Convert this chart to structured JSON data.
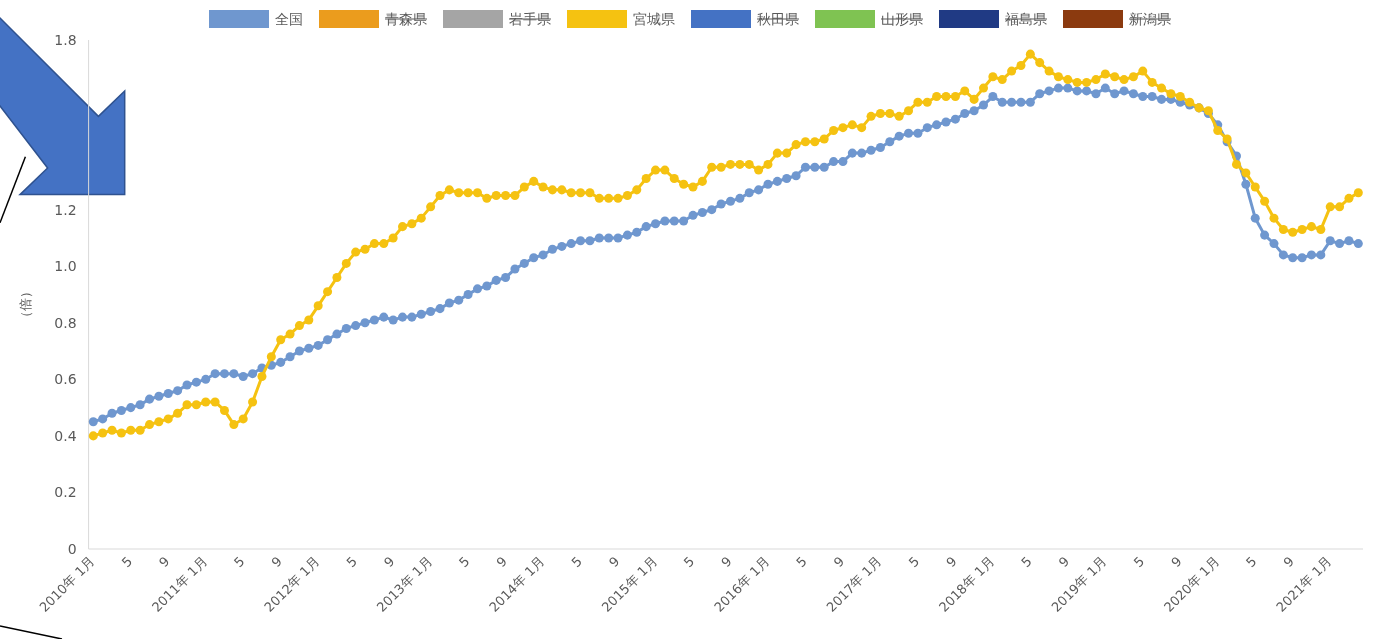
{
  "chart_data": {
    "type": "line",
    "ylabel": "（倍）",
    "categories": [
      "2010年 1月",
      null,
      null,
      null,
      "5",
      null,
      null,
      null,
      "9",
      null,
      null,
      null,
      "2011年 1月",
      null,
      null,
      null,
      "5",
      null,
      null,
      null,
      "9",
      null,
      null,
      null,
      "2012年 1月",
      null,
      null,
      null,
      "5",
      null,
      null,
      null,
      "9",
      null,
      null,
      null,
      "2013年 1月",
      null,
      null,
      null,
      "5",
      null,
      null,
      null,
      "9",
      null,
      null,
      null,
      "2014年 1月",
      null,
      null,
      null,
      "5",
      null,
      null,
      null,
      "9",
      null,
      null,
      null,
      "2015年 1月",
      null,
      null,
      null,
      "5",
      null,
      null,
      null,
      "9",
      null,
      null,
      null,
      "2016年 1月",
      null,
      null,
      null,
      "5",
      null,
      null,
      null,
      "9",
      null,
      null,
      null,
      "2017年 1月",
      null,
      null,
      null,
      "5",
      null,
      null,
      null,
      "9",
      null,
      null,
      null,
      "2018年 1月",
      null,
      null,
      null,
      "5",
      null,
      null,
      null,
      "9",
      null,
      null,
      null,
      "2019年 1月",
      null,
      null,
      null,
      "5",
      null,
      null,
      null,
      "9",
      null,
      null,
      null,
      "2020年 1月",
      null,
      null,
      null,
      "5",
      null,
      null,
      null,
      "9",
      null,
      null,
      null,
      "2021年 1月",
      null,
      null,
      null
    ],
    "series": [
      {
        "name": "全国",
        "color": "#6f97cf",
        "values": [
          0.45,
          0.46,
          0.48,
          0.49,
          0.5,
          0.51,
          0.53,
          0.54,
          0.55,
          0.56,
          0.58,
          0.59,
          0.6,
          0.62,
          0.62,
          0.62,
          0.61,
          0.62,
          0.64,
          0.65,
          0.66,
          0.68,
          0.7,
          0.71,
          0.72,
          0.74,
          0.76,
          0.78,
          0.79,
          0.8,
          0.81,
          0.82,
          0.81,
          0.82,
          0.82,
          0.83,
          0.84,
          0.85,
          0.87,
          0.88,
          0.9,
          0.92,
          0.93,
          0.95,
          0.96,
          0.99,
          1.01,
          1.03,
          1.04,
          1.06,
          1.07,
          1.08,
          1.09,
          1.09,
          1.1,
          1.1,
          1.1,
          1.11,
          1.12,
          1.14,
          1.15,
          1.16,
          1.16,
          1.16,
          1.18,
          1.19,
          1.2,
          1.22,
          1.23,
          1.24,
          1.26,
          1.27,
          1.29,
          1.3,
          1.31,
          1.32,
          1.35,
          1.35,
          1.35,
          1.37,
          1.37,
          1.4,
          1.4,
          1.41,
          1.42,
          1.44,
          1.46,
          1.47,
          1.47,
          1.49,
          1.5,
          1.51,
          1.52,
          1.54,
          1.55,
          1.57,
          1.6,
          1.58,
          1.58,
          1.58,
          1.58,
          1.61,
          1.62,
          1.63,
          1.63,
          1.62,
          1.62,
          1.61,
          1.63,
          1.61,
          1.62,
          1.61,
          1.6,
          1.6,
          1.59,
          1.59,
          1.58,
          1.57,
          1.56,
          1.54,
          1.5,
          1.44,
          1.39,
          1.29,
          1.17,
          1.11,
          1.08,
          1.04,
          1.03,
          1.03,
          1.04,
          1.04,
          1.09,
          1.08,
          1.09,
          1.08
        ]
      },
      {
        "name": "青森県",
        "color": "#eb9c1d",
        "values": [
          null,
          null,
          null,
          null,
          null,
          null,
          null,
          null,
          null,
          null,
          null,
          null,
          null,
          null,
          null,
          null,
          null,
          null,
          null,
          null,
          null,
          null,
          null,
          null,
          null,
          null,
          null,
          null,
          null,
          null,
          null,
          null,
          null,
          null,
          null,
          null,
          null,
          null,
          null,
          null,
          null,
          null,
          null,
          null,
          null,
          null,
          null,
          null,
          null,
          null,
          null,
          null,
          null,
          null,
          null,
          null,
          null,
          null,
          null,
          null,
          null,
          null,
          null,
          null,
          null,
          null,
          null,
          null,
          null,
          null,
          null,
          null,
          null,
          null,
          null,
          null,
          null,
          null,
          null,
          null,
          null,
          null,
          null,
          null,
          null,
          null,
          null,
          null,
          null,
          null,
          null,
          null,
          null,
          null,
          null,
          null,
          null,
          null,
          null,
          null,
          null,
          null,
          null,
          null,
          null,
          null,
          null,
          null,
          null,
          null,
          null,
          null,
          null,
          null,
          null,
          null,
          null,
          null,
          null,
          null,
          null,
          null,
          null,
          null,
          null,
          null,
          null,
          null,
          null,
          null,
          null,
          null,
          null,
          null,
          null,
          null
        ]
      },
      {
        "name": "岩手県",
        "color": "#a5a5a5",
        "values": [
          null,
          null,
          null,
          null,
          null,
          null,
          null,
          null,
          null,
          null,
          null,
          null,
          null,
          null,
          null,
          null,
          null,
          null,
          null,
          null,
          null,
          null,
          null,
          null,
          null,
          null,
          null,
          null,
          null,
          null,
          null,
          null,
          null,
          null,
          null,
          null,
          null,
          null,
          null,
          null,
          null,
          null,
          null,
          null,
          null,
          null,
          null,
          null,
          null,
          null,
          null,
          null,
          null,
          null,
          null,
          null,
          null,
          null,
          null,
          null,
          null,
          null,
          null,
          null,
          null,
          null,
          null,
          null,
          null,
          null,
          null,
          null,
          null,
          null,
          null,
          null,
          null,
          null,
          null,
          null,
          null,
          null,
          null,
          null,
          null,
          null,
          null,
          null,
          null,
          null,
          null,
          null,
          null,
          null,
          null,
          null,
          null,
          null,
          null,
          null,
          null,
          null,
          null,
          null,
          null,
          null,
          null,
          null,
          null,
          null,
          null,
          null,
          null,
          null,
          null,
          null,
          null,
          null,
          null,
          null,
          null,
          null,
          null,
          null,
          null,
          null,
          null,
          null,
          null,
          null,
          null,
          null,
          null,
          null,
          null,
          null
        ]
      },
      {
        "name": "宮城県",
        "color": "#f5c211",
        "values": [
          0.4,
          0.41,
          0.42,
          0.41,
          0.42,
          0.42,
          0.44,
          0.45,
          0.46,
          0.48,
          0.51,
          0.51,
          0.52,
          0.52,
          0.49,
          0.44,
          0.46,
          0.52,
          0.61,
          0.68,
          0.74,
          0.76,
          0.79,
          0.81,
          0.86,
          0.91,
          0.96,
          1.01,
          1.05,
          1.06,
          1.08,
          1.08,
          1.1,
          1.14,
          1.15,
          1.17,
          1.21,
          1.25,
          1.27,
          1.26,
          1.26,
          1.26,
          1.24,
          1.25,
          1.25,
          1.25,
          1.28,
          1.3,
          1.28,
          1.27,
          1.27,
          1.26,
          1.26,
          1.26,
          1.24,
          1.24,
          1.24,
          1.25,
          1.27,
          1.31,
          1.34,
          1.34,
          1.31,
          1.29,
          1.28,
          1.3,
          1.35,
          1.35,
          1.36,
          1.36,
          1.36,
          1.34,
          1.36,
          1.4,
          1.4,
          1.43,
          1.44,
          1.44,
          1.45,
          1.48,
          1.49,
          1.5,
          1.49,
          1.53,
          1.54,
          1.54,
          1.53,
          1.55,
          1.58,
          1.58,
          1.6,
          1.6,
          1.6,
          1.62,
          1.59,
          1.63,
          1.67,
          1.66,
          1.69,
          1.71,
          1.75,
          1.72,
          1.69,
          1.67,
          1.66,
          1.65,
          1.65,
          1.66,
          1.68,
          1.67,
          1.66,
          1.67,
          1.69,
          1.65,
          1.63,
          1.61,
          1.6,
          1.58,
          1.56,
          1.55,
          1.48,
          1.45,
          1.36,
          1.33,
          1.28,
          1.23,
          1.17,
          1.13,
          1.12,
          1.13,
          1.14,
          1.13,
          1.21,
          1.21,
          1.24,
          1.26
        ]
      },
      {
        "name": "秋田県",
        "color": "#4472c4",
        "values": [
          null,
          null,
          null,
          null,
          null,
          null,
          null,
          null,
          null,
          null,
          null,
          null,
          null,
          null,
          null,
          null,
          null,
          null,
          null,
          null,
          null,
          null,
          null,
          null,
          null,
          null,
          null,
          null,
          null,
          null,
          null,
          null,
          null,
          null,
          null,
          null,
          null,
          null,
          null,
          null,
          null,
          null,
          null,
          null,
          null,
          null,
          null,
          null,
          null,
          null,
          null,
          null,
          null,
          null,
          null,
          null,
          null,
          null,
          null,
          null,
          null,
          null,
          null,
          null,
          null,
          null,
          null,
          null,
          null,
          null,
          null,
          null,
          null,
          null,
          null,
          null,
          null,
          null,
          null,
          null,
          null,
          null,
          null,
          null,
          null,
          null,
          null,
          null,
          null,
          null,
          null,
          null,
          null,
          null,
          null,
          null,
          null,
          null,
          null,
          null,
          null,
          null,
          null,
          null,
          null,
          null,
          null,
          null,
          null,
          null,
          null,
          null,
          null,
          null,
          null,
          null,
          null,
          null,
          null,
          null,
          null,
          null,
          null,
          null,
          null,
          null,
          null,
          null,
          null,
          null,
          null,
          null,
          null,
          null,
          null,
          null
        ]
      },
      {
        "name": "山形県",
        "color": "#7fc352",
        "values": [
          null,
          null,
          null,
          null,
          null,
          null,
          null,
          null,
          null,
          null,
          null,
          null,
          null,
          null,
          null,
          null,
          null,
          null,
          null,
          null,
          null,
          null,
          null,
          null,
          null,
          null,
          null,
          null,
          null,
          null,
          null,
          null,
          null,
          null,
          null,
          null,
          null,
          null,
          null,
          null,
          null,
          null,
          null,
          null,
          null,
          null,
          null,
          null,
          null,
          null,
          null,
          null,
          null,
          null,
          null,
          null,
          null,
          null,
          null,
          null,
          null,
          null,
          null,
          null,
          null,
          null,
          null,
          null,
          null,
          null,
          null,
          null,
          null,
          null,
          null,
          null,
          null,
          null,
          null,
          null,
          null,
          null,
          null,
          null,
          null,
          null,
          null,
          null,
          null,
          null,
          null,
          null,
          null,
          null,
          null,
          null,
          null,
          null,
          null,
          null,
          null,
          null,
          null,
          null,
          null,
          null,
          null,
          null,
          null,
          null,
          null,
          null,
          null,
          null,
          null,
          null,
          null,
          null,
          null,
          null,
          null,
          null,
          null,
          null,
          null,
          null,
          null,
          null,
          null,
          null,
          null,
          null,
          null,
          null,
          null,
          null
        ]
      },
      {
        "name": "福島県",
        "color": "#203a84",
        "values": [
          null,
          null,
          null,
          null,
          null,
          null,
          null,
          null,
          null,
          null,
          null,
          null,
          null,
          null,
          null,
          null,
          null,
          null,
          null,
          null,
          null,
          null,
          null,
          null,
          null,
          null,
          null,
          null,
          null,
          null,
          null,
          null,
          null,
          null,
          null,
          null,
          null,
          null,
          null,
          null,
          null,
          null,
          null,
          null,
          null,
          null,
          null,
          null,
          null,
          null,
          null,
          null,
          null,
          null,
          null,
          null,
          null,
          null,
          null,
          null,
          null,
          null,
          null,
          null,
          null,
          null,
          null,
          null,
          null,
          null,
          null,
          null,
          null,
          null,
          null,
          null,
          null,
          null,
          null,
          null,
          null,
          null,
          null,
          null,
          null,
          null,
          null,
          null,
          null,
          null,
          null,
          null,
          null,
          null,
          null,
          null,
          null,
          null,
          null,
          null,
          null,
          null,
          null,
          null,
          null,
          null,
          null,
          null,
          null,
          null,
          null,
          null,
          null,
          null,
          null,
          null,
          null,
          null,
          null,
          null,
          null,
          null,
          null,
          null,
          null,
          null,
          null,
          null,
          null,
          null,
          null,
          null,
          null,
          null,
          null,
          null
        ]
      },
      {
        "name": "新潟県",
        "color": "#8b3a0f",
        "values": [
          null,
          null,
          null,
          null,
          null,
          null,
          null,
          null,
          null,
          null,
          null,
          null,
          null,
          null,
          null,
          null,
          null,
          null,
          null,
          null,
          null,
          null,
          null,
          null,
          null,
          null,
          null,
          null,
          null,
          null,
          null,
          null,
          null,
          null,
          null,
          null,
          null,
          null,
          null,
          null,
          null,
          null,
          null,
          null,
          null,
          null,
          null,
          null,
          null,
          null,
          null,
          null,
          null,
          null,
          null,
          null,
          null,
          null,
          null,
          null,
          null,
          null,
          null,
          null,
          null,
          null,
          null,
          null,
          null,
          null,
          null,
          null,
          null,
          null,
          null,
          null,
          null,
          null,
          null,
          null,
          null,
          null,
          null,
          null,
          null,
          null,
          null,
          null,
          null,
          null,
          null,
          null,
          null,
          null,
          null,
          null,
          null,
          null,
          null,
          null,
          null,
          null,
          null,
          null,
          null,
          null,
          null,
          null,
          null,
          null,
          null,
          null,
          null,
          null,
          null,
          null,
          null,
          null,
          null,
          null,
          null,
          null,
          null,
          null,
          null,
          null,
          null,
          null,
          null,
          null,
          null,
          null,
          null,
          null,
          null,
          null
        ]
      }
    ],
    "ylim": [
      0,
      1.8
    ],
    "yticks": [
      0,
      0.2,
      0.4,
      0.6,
      0.8,
      {
        "value": 1,
        "label": "1.0"
      },
      1.2,
      1.8
    ],
    "grid": false,
    "legend": "top",
    "marker": "circle",
    "line_style": "solid"
  }
}
